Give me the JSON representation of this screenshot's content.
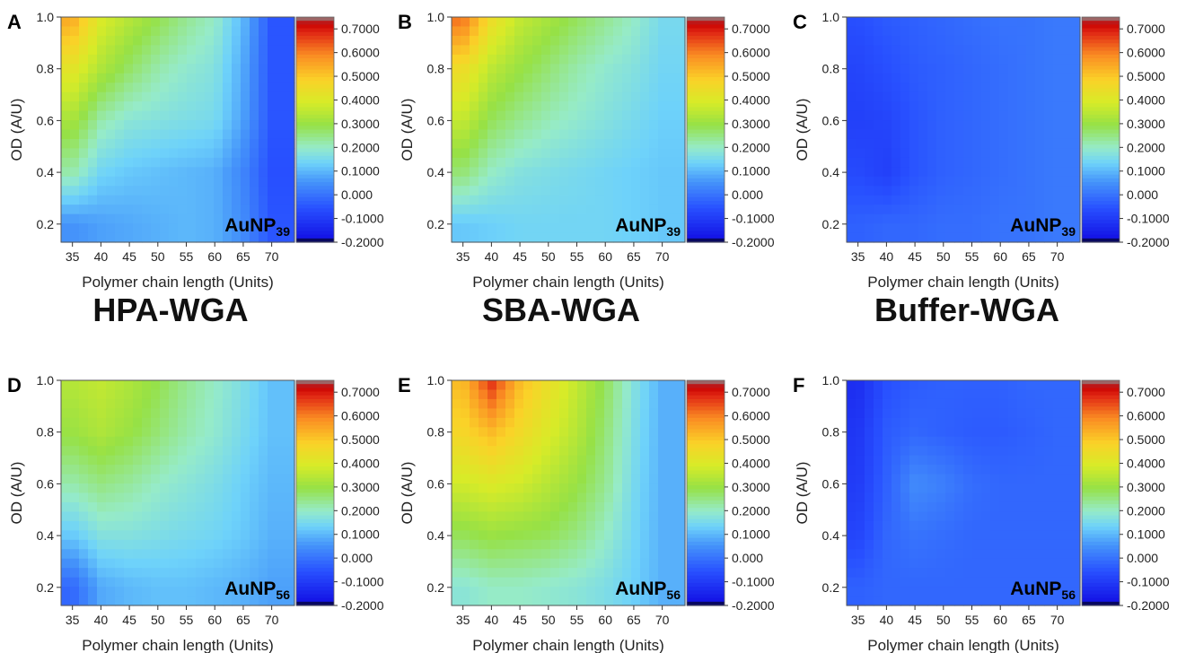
{
  "section_titles": [
    "HPA-WGA",
    "SBA-WGA",
    "Buffer-WGA"
  ],
  "chart_data": [
    {
      "type": "heatmap",
      "panel": "A",
      "xlabel": "Polymer chain length (Units)",
      "ylabel": "OD (A/U)",
      "nanoparticle": "AuNP",
      "subscript": "39",
      "x": [
        35,
        40,
        45,
        50,
        55,
        60,
        65,
        70
      ],
      "y": [
        0.2,
        0.4,
        0.6,
        0.8,
        1.0
      ],
      "xlim": [
        33,
        74
      ],
      "ylim": [
        0.13,
        1.0
      ],
      "x_ticks": [
        "35",
        "40",
        "45",
        "50",
        "55",
        "60",
        "65",
        "70"
      ],
      "y_ticks": [
        "0.2",
        "0.4",
        "0.6",
        "0.8",
        "1.0"
      ],
      "colorbar_ticks": [
        "0.7000",
        "0.6000",
        "0.5000",
        "0.4000",
        "0.3000",
        "0.2000",
        "0.1000",
        "0.000",
        "-0.1000",
        "-0.2000"
      ],
      "colorbar_range": [
        -0.2,
        0.75
      ],
      "z": [
        [
          0.05,
          0.07,
          0.08,
          0.09,
          0.1,
          0.09,
          0.04,
          -0.05
        ],
        [
          0.22,
          0.14,
          0.12,
          0.11,
          0.1,
          0.09,
          0.03,
          -0.06
        ],
        [
          0.32,
          0.22,
          0.18,
          0.17,
          0.16,
          0.15,
          0.07,
          -0.05
        ],
        [
          0.42,
          0.33,
          0.27,
          0.22,
          0.19,
          0.17,
          0.08,
          -0.05
        ],
        [
          0.55,
          0.4,
          0.34,
          0.29,
          0.24,
          0.2,
          0.1,
          -0.05
        ]
      ]
    },
    {
      "type": "heatmap",
      "panel": "B",
      "xlabel": "Polymer chain length (Units)",
      "ylabel": "OD (A/U)",
      "nanoparticle": "AuNP",
      "subscript": "39",
      "x": [
        35,
        40,
        45,
        50,
        55,
        60,
        65,
        70
      ],
      "y": [
        0.2,
        0.4,
        0.6,
        0.8,
        1.0
      ],
      "xlim": [
        33,
        74
      ],
      "ylim": [
        0.13,
        1.0
      ],
      "x_ticks": [
        "35",
        "40",
        "45",
        "50",
        "55",
        "60",
        "65",
        "70"
      ],
      "y_ticks": [
        "0.2",
        "0.4",
        "0.6",
        "0.8",
        "1.0"
      ],
      "colorbar_ticks": [
        "0.7000",
        "0.6000",
        "0.5000",
        "0.4000",
        "0.3000",
        "0.2000",
        "0.1000",
        "0.000",
        "-0.1000",
        "-0.2000"
      ],
      "colorbar_range": [
        -0.2,
        0.75
      ],
      "z": [
        [
          0.12,
          0.13,
          0.14,
          0.14,
          0.14,
          0.14,
          0.13,
          0.12
        ],
        [
          0.26,
          0.2,
          0.17,
          0.16,
          0.15,
          0.14,
          0.13,
          0.12
        ],
        [
          0.36,
          0.28,
          0.24,
          0.21,
          0.19,
          0.17,
          0.15,
          0.13
        ],
        [
          0.45,
          0.35,
          0.3,
          0.26,
          0.22,
          0.19,
          0.17,
          0.14
        ],
        [
          0.62,
          0.45,
          0.36,
          0.32,
          0.28,
          0.24,
          0.2,
          0.15
        ]
      ]
    },
    {
      "type": "heatmap",
      "panel": "C",
      "xlabel": "Polymer chain length (Units)",
      "ylabel": "OD (A/U)",
      "nanoparticle": "AuNP",
      "subscript": "39",
      "x": [
        35,
        40,
        45,
        50,
        55,
        60,
        65,
        70
      ],
      "y": [
        0.2,
        0.4,
        0.6,
        0.8,
        1.0
      ],
      "xlim": [
        33,
        74
      ],
      "ylim": [
        0.13,
        1.0
      ],
      "x_ticks": [
        "35",
        "40",
        "45",
        "50",
        "55",
        "60",
        "65",
        "70"
      ],
      "y_ticks": [
        "0.2",
        "0.4",
        "0.6",
        "0.8",
        "1.0"
      ],
      "colorbar_ticks": [
        "0.7000",
        "0.6000",
        "0.5000",
        "0.4000",
        "0.3000",
        "0.2000",
        "0.1000",
        "0.000",
        "-0.1000",
        "-0.2000"
      ],
      "colorbar_range": [
        -0.2,
        0.75
      ],
      "z": [
        [
          -0.03,
          -0.02,
          -0.02,
          -0.01,
          -0.01,
          0.0,
          0.0,
          0.01
        ],
        [
          -0.07,
          -0.09,
          -0.05,
          -0.03,
          -0.02,
          -0.01,
          0.0,
          0.01
        ],
        [
          -0.09,
          -0.08,
          -0.05,
          -0.03,
          -0.02,
          -0.01,
          0.0,
          0.01
        ],
        [
          -0.08,
          -0.06,
          -0.04,
          -0.03,
          -0.02,
          -0.01,
          0.0,
          0.01
        ],
        [
          -0.06,
          -0.04,
          -0.03,
          -0.02,
          -0.01,
          0.0,
          0.0,
          0.01
        ]
      ]
    },
    {
      "type": "heatmap",
      "panel": "D",
      "xlabel": "Polymer chain length (Units)",
      "ylabel": "OD (A/U)",
      "nanoparticle": "AuNP",
      "subscript": "56",
      "x": [
        35,
        40,
        45,
        50,
        55,
        60,
        65,
        70
      ],
      "y": [
        0.2,
        0.4,
        0.6,
        0.8,
        1.0
      ],
      "xlim": [
        33,
        74
      ],
      "ylim": [
        0.13,
        1.0
      ],
      "x_ticks": [
        "35",
        "40",
        "45",
        "50",
        "55",
        "60",
        "65",
        "70"
      ],
      "y_ticks": [
        "0.2",
        "0.4",
        "0.6",
        "0.8",
        "1.0"
      ],
      "colorbar_ticks": [
        "0.7000",
        "0.6000",
        "0.5000",
        "0.4000",
        "0.3000",
        "0.2000",
        "0.1000",
        "0.000",
        "-0.1000",
        "-0.2000"
      ],
      "colorbar_range": [
        -0.2,
        0.75
      ],
      "z": [
        [
          -0.02,
          0.08,
          0.1,
          0.11,
          0.11,
          0.1,
          0.09,
          0.07
        ],
        [
          0.12,
          0.17,
          0.17,
          0.16,
          0.15,
          0.14,
          0.12,
          0.09
        ],
        [
          0.22,
          0.25,
          0.23,
          0.2,
          0.18,
          0.16,
          0.13,
          0.1
        ],
        [
          0.3,
          0.33,
          0.3,
          0.26,
          0.22,
          0.19,
          0.15,
          0.11
        ],
        [
          0.34,
          0.36,
          0.33,
          0.29,
          0.24,
          0.2,
          0.16,
          0.11
        ]
      ]
    },
    {
      "type": "heatmap",
      "panel": "E",
      "xlabel": "Polymer chain length (Units)",
      "ylabel": "OD (A/U)",
      "nanoparticle": "AuNP",
      "subscript": "56",
      "x": [
        35,
        40,
        45,
        50,
        55,
        60,
        65,
        70
      ],
      "y": [
        0.2,
        0.4,
        0.6,
        0.8,
        1.0
      ],
      "xlim": [
        33,
        74
      ],
      "ylim": [
        0.13,
        1.0
      ],
      "x_ticks": [
        "35",
        "40",
        "45",
        "50",
        "55",
        "60",
        "65",
        "70"
      ],
      "y_ticks": [
        "0.2",
        "0.4",
        "0.6",
        "0.8",
        "1.0"
      ],
      "colorbar_ticks": [
        "0.7000",
        "0.6000",
        "0.5000",
        "0.4000",
        "0.3000",
        "0.2000",
        "0.1000",
        "0.000",
        "-0.1000",
        "-0.2000"
      ],
      "colorbar_range": [
        -0.2,
        0.75
      ],
      "z": [
        [
          0.18,
          0.2,
          0.2,
          0.19,
          0.18,
          0.16,
          0.13,
          0.09
        ],
        [
          0.28,
          0.3,
          0.29,
          0.28,
          0.25,
          0.2,
          0.14,
          0.09
        ],
        [
          0.38,
          0.4,
          0.38,
          0.34,
          0.3,
          0.24,
          0.15,
          0.09
        ],
        [
          0.47,
          0.52,
          0.46,
          0.4,
          0.34,
          0.26,
          0.16,
          0.09
        ],
        [
          0.52,
          0.68,
          0.52,
          0.44,
          0.36,
          0.28,
          0.17,
          0.09
        ]
      ]
    },
    {
      "type": "heatmap",
      "panel": "F",
      "xlabel": "Polymer chain length (Units)",
      "ylabel": "OD (A/U)",
      "nanoparticle": "AuNP",
      "subscript": "56",
      "x": [
        35,
        40,
        45,
        50,
        55,
        60,
        65,
        70
      ],
      "y": [
        0.2,
        0.4,
        0.6,
        0.8,
        1.0
      ],
      "xlim": [
        33,
        74
      ],
      "ylim": [
        0.13,
        1.0
      ],
      "x_ticks": [
        "35",
        "40",
        "45",
        "50",
        "55",
        "60",
        "65",
        "70"
      ],
      "y_ticks": [
        "0.2",
        "0.4",
        "0.6",
        "0.8",
        "1.0"
      ],
      "colorbar_ticks": [
        "0.7000",
        "0.6000",
        "0.5000",
        "0.4000",
        "0.3000",
        "0.2000",
        "0.1000",
        "0.000",
        "-0.1000",
        "-0.2000"
      ],
      "colorbar_range": [
        -0.2,
        0.75
      ],
      "z": [
        [
          -0.03,
          -0.02,
          -0.02,
          -0.02,
          -0.02,
          -0.02,
          -0.02,
          -0.02
        ],
        [
          -0.08,
          -0.02,
          0.0,
          -0.01,
          -0.02,
          -0.02,
          -0.02,
          -0.02
        ],
        [
          -0.1,
          -0.03,
          0.04,
          0.02,
          -0.01,
          -0.02,
          -0.02,
          -0.02
        ],
        [
          -0.11,
          -0.04,
          -0.02,
          -0.03,
          -0.04,
          -0.04,
          -0.03,
          -0.02
        ],
        [
          -0.13,
          -0.06,
          -0.04,
          -0.03,
          -0.03,
          -0.03,
          -0.02,
          -0.02
        ]
      ]
    }
  ]
}
